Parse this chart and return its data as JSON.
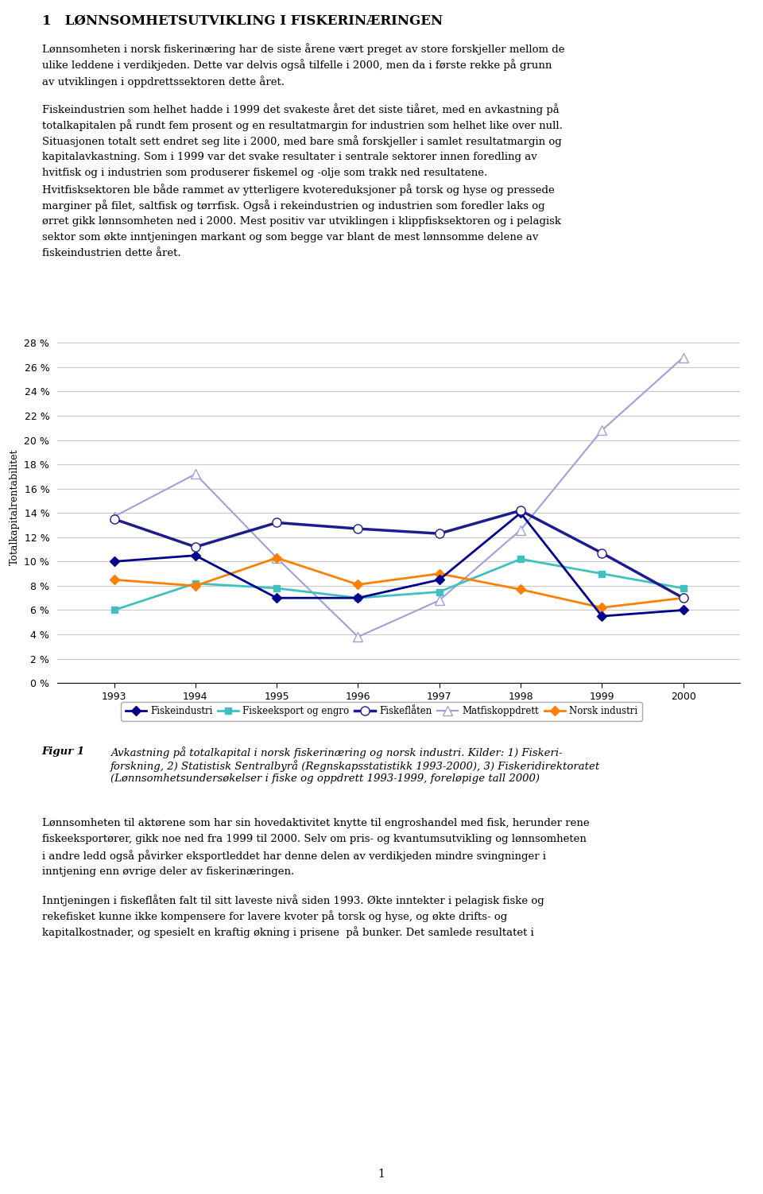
{
  "years": [
    1993,
    1994,
    1995,
    1996,
    1997,
    1998,
    1999,
    2000
  ],
  "series": {
    "Fiskeindustri": {
      "values": [
        10.0,
        10.5,
        7.0,
        7.0,
        8.5,
        14.0,
        5.5,
        6.0
      ],
      "color": "#00008B",
      "marker": "D",
      "linewidth": 2.0,
      "markersize": 6,
      "markerfacecolor": "#00008B",
      "zorder": 5
    },
    "Fiskeeksport og engro": {
      "values": [
        6.0,
        8.2,
        7.8,
        7.0,
        7.5,
        10.2,
        9.0,
        7.8
      ],
      "color": "#40C0C0",
      "marker": "s",
      "linewidth": 2.0,
      "markersize": 6,
      "markerfacecolor": "#40C0C0",
      "zorder": 4
    },
    "Fiskeflåten": {
      "values": [
        13.5,
        11.2,
        13.2,
        12.7,
        12.3,
        14.2,
        10.7,
        7.0
      ],
      "color": "#1C1C8C",
      "marker": "o",
      "linewidth": 2.5,
      "markersize": 8,
      "markerfacecolor": "white",
      "markeredgecolor": "#1C1C8C",
      "zorder": 6
    },
    "Matfiskoppdrett": {
      "values": [
        13.7,
        17.2,
        10.3,
        3.8,
        6.8,
        12.6,
        20.8,
        26.8
      ],
      "color": "#A0A0D8",
      "marker": "^",
      "linewidth": 1.5,
      "markersize": 8,
      "markerfacecolor": "white",
      "markeredgecolor": "#A0A0D8",
      "zorder": 3
    },
    "Norsk industri": {
      "values": [
        8.5,
        8.0,
        10.3,
        8.1,
        9.0,
        7.7,
        6.2,
        7.0
      ],
      "color": "#FF8000",
      "marker": "D",
      "linewidth": 2.0,
      "markersize": 6,
      "markerfacecolor": "#FF8000",
      "zorder": 4
    }
  },
  "ylabel": "Totalkapitalrentabilitet",
  "ylim": [
    0,
    29
  ],
  "yticks": [
    0,
    2,
    4,
    6,
    8,
    10,
    12,
    14,
    16,
    18,
    20,
    22,
    24,
    26,
    28
  ],
  "ytick_labels": [
    "0 %",
    "2 %",
    "4 %",
    "6 %",
    "8 %",
    "10 %",
    "12 %",
    "14 %",
    "16 %",
    "18 %",
    "20 %",
    "22 %",
    "24 %",
    "26 %",
    "28 %"
  ],
  "grid_color": "#C8C8C8",
  "legend_order": [
    "Fiskeindustri",
    "Fiskeeksport og engro",
    "Fiskeflåten",
    "Matfiskoppdrett",
    "Norsk industri"
  ],
  "title": "1   LØNNSOMHETSUTVIKLING I FISKERINÆRINGEN",
  "body1": "Lønnsomheten i norsk fiskerinæring har de siste årene vært preget av store forskjeller mellom de ulike leddene i verdikjeden. Dette var delvis også tilfelle i 2000, men da i første rekke på grunn av utviklingen i oppdrettssektoren dette året.",
  "body2": "Fiskeindustrien som helhet hadde i 1999 det svakeste året det siste tiåret, med en avkastning på totalkapitalen på rundt fem prosent og en resultatmargin for industrien som helhet like over null. Situasjonen totalt sett endret seg lite i 2000, med bare små forskjeller i samlet resultatmargin og kapitalavkastning. Som i 1999 var det svake resultater i sentrale sektorer innen foredling av hvitfisk og i industrien som produserer fiskemel og -olje som trakk ned resultatene. Hvitfisksektoren ble både rammet av ytterligere kvotereduksjoner på torsk og hyse og pressede marginer på filet, saltfisk og tørrfisk. Også i rekeindustrien og industrien som foredler laks og ørret gikk lønnsomheten ned i 2000. Mest positiv var utviklingen i klippfisksektoren og i pelagisk sektor som økte inntjeningen markant og som begge var blant de mest lønnsomme delene av fiskeindustrien dette året.",
  "caption_bold": "Figur 1",
  "caption_text": "Avkastning på totalkapital i norsk fiskerinæring og norsk industri. Kilder: 1) Fiskeri-forskning, 2) Statistisk Sentralbyrå (Regnskapsstatistikk 1993-2000), 3) Fiskeridirektoratet (Lønnsomhetsundersøkelser i fiske og oppdrett 1993-1999, foreløpige tall 2000)",
  "body3": "Lønnsomheten til aktørene som har sin hovedaktivitet knytte til engroshandel med fisk, herunder rene fiskeeksportører, gikk noe ned fra 1999 til 2000. Selv om pris- og kvantumsutvikling og lønnsomheten i andre ledd også påvirker eksportleddet har denne delen av verdikjeden mindre svingninger i inntjening enn øvrige deler av fiskerinæringen.",
  "body4": "Inntjeningen i fiskeflåten falt til sitt laveste nivå siden 1993. Økte inntekter i pelagisk fiske og rekefisket kunne ikke kompensere for lavere kvoter på torsk og hyse, og økte drifts- og kapitalkostnader, og spesielt en kraftig økning i prisene  på bunker. Det samlede resultatet i",
  "page_number": "1"
}
